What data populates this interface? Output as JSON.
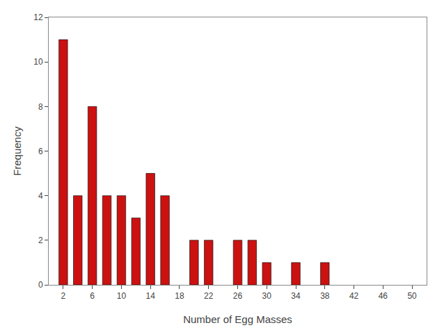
{
  "chart_data": {
    "type": "bar",
    "x": [
      2,
      4,
      6,
      8,
      10,
      12,
      14,
      16,
      20,
      22,
      26,
      28,
      30,
      34,
      38
    ],
    "values": [
      11,
      4,
      8,
      4,
      4,
      3,
      5,
      4,
      2,
      2,
      2,
      2,
      1,
      1,
      1
    ],
    "color": "#cc1111",
    "xlabel": "Number of Egg Masses",
    "ylabel": "Frequency",
    "xlim": [
      0,
      52
    ],
    "ylim": [
      0,
      12
    ],
    "xticks": [
      2,
      6,
      10,
      14,
      18,
      22,
      26,
      30,
      34,
      38,
      42,
      46,
      50
    ],
    "yticks": [
      0,
      2,
      4,
      6,
      8,
      10,
      12
    ],
    "grid": false
  }
}
